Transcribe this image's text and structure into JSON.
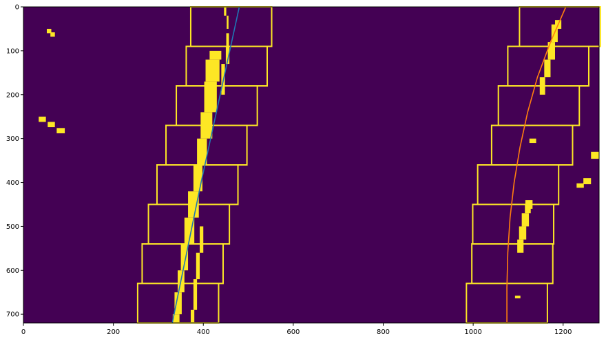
{
  "chart_data": {
    "type": "image",
    "title": "",
    "xlabel": "",
    "ylabel": "",
    "xlim": [
      0,
      1280
    ],
    "ylim": [
      720,
      0
    ],
    "x_ticks": [
      0,
      200,
      400,
      600,
      800,
      1000,
      1200
    ],
    "y_ticks": [
      0,
      100,
      200,
      300,
      400,
      500,
      600,
      700
    ],
    "colors": {
      "background": "#440154",
      "pixels": "#fde725",
      "windows": "#fde725",
      "left_fit": "#1f77b4",
      "right_fit": "#ff7f0e"
    },
    "left_windows": [
      {
        "x": [
          254,
          434
        ],
        "y": [
          630,
          720
        ]
      },
      {
        "x": [
          264,
          444
        ],
        "y": [
          540,
          630
        ]
      },
      {
        "x": [
          278,
          458
        ],
        "y": [
          450,
          540
        ]
      },
      {
        "x": [
          297,
          477
        ],
        "y": [
          360,
          450
        ]
      },
      {
        "x": [
          317,
          497
        ],
        "y": [
          270,
          360
        ]
      },
      {
        "x": [
          340,
          520
        ],
        "y": [
          180,
          270
        ]
      },
      {
        "x": [
          362,
          542
        ],
        "y": [
          90,
          180
        ]
      },
      {
        "x": [
          372,
          552
        ],
        "y": [
          0,
          90
        ]
      }
    ],
    "right_windows": [
      {
        "x": [
          985,
          1165
        ],
        "y": [
          630,
          720
        ]
      },
      {
        "x": [
          997,
          1177
        ],
        "y": [
          540,
          630
        ]
      },
      {
        "x": [
          999,
          1179
        ],
        "y": [
          450,
          540
        ]
      },
      {
        "x": [
          1010,
          1190
        ],
        "y": [
          360,
          450
        ]
      },
      {
        "x": [
          1041,
          1221
        ],
        "y": [
          270,
          360
        ]
      },
      {
        "x": [
          1056,
          1236
        ],
        "y": [
          180,
          270
        ]
      },
      {
        "x": [
          1077,
          1257
        ],
        "y": [
          90,
          180
        ]
      },
      {
        "x": [
          1103,
          1283
        ],
        "y": [
          0,
          90
        ]
      }
    ],
    "left_fit": {
      "x": [
        480,
        463,
        446,
        429,
        412,
        395,
        379,
        363,
        347,
        331
      ],
      "y": [
        0,
        80,
        160,
        240,
        320,
        400,
        480,
        560,
        640,
        720
      ]
    },
    "right_fit": {
      "x": [
        1206,
        1172,
        1143,
        1121,
        1104,
        1091,
        1082,
        1077,
        1075,
        1075
      ],
      "y": [
        0,
        80,
        160,
        240,
        320,
        400,
        480,
        560,
        640,
        720
      ]
    },
    "left_lane_pixels": [
      {
        "x": [
          332,
          347
        ],
        "y": [
          700,
          720
        ]
      },
      {
        "x": [
          336,
          352
        ],
        "y": [
          650,
          700
        ]
      },
      {
        "x": [
          343,
          358
        ],
        "y": [
          600,
          650
        ]
      },
      {
        "x": [
          350,
          366
        ],
        "y": [
          540,
          600
        ]
      },
      {
        "x": [
          358,
          380
        ],
        "y": [
          480,
          540
        ]
      },
      {
        "x": [
          366,
          390
        ],
        "y": [
          420,
          480
        ]
      },
      {
        "x": [
          378,
          398
        ],
        "y": [
          360,
          420
        ]
      },
      {
        "x": [
          386,
          408
        ],
        "y": [
          300,
          360
        ]
      },
      {
        "x": [
          394,
          420
        ],
        "y": [
          240,
          300
        ]
      },
      {
        "x": [
          402,
          430
        ],
        "y": [
          170,
          240
        ]
      },
      {
        "x": [
          405,
          436
        ],
        "y": [
          120,
          170
        ]
      },
      {
        "x": [
          414,
          440
        ],
        "y": [
          100,
          120
        ]
      },
      {
        "x": [
          440,
          448
        ],
        "y": [
          130,
          200
        ]
      },
      {
        "x": [
          450,
          458
        ],
        "y": [
          90,
          130
        ]
      },
      {
        "x": [
          451,
          457
        ],
        "y": [
          60,
          90
        ]
      },
      {
        "x": [
          452,
          456
        ],
        "y": [
          20,
          50
        ]
      },
      {
        "x": [
          446,
          451
        ],
        "y": [
          0,
          20
        ]
      }
    ],
    "left_lane_pixels_right_edge": [
      {
        "x": [
          372,
          380
        ],
        "y": [
          690,
          720
        ]
      },
      {
        "x": [
          378,
          386
        ],
        "y": [
          620,
          690
        ]
      },
      {
        "x": [
          384,
          392
        ],
        "y": [
          560,
          620
        ]
      },
      {
        "x": [
          392,
          400
        ],
        "y": [
          500,
          560
        ]
      }
    ],
    "right_lane_pixels": [
      {
        "x": [
          1148,
          1160
        ],
        "y": [
          160,
          200
        ]
      },
      {
        "x": [
          1158,
          1172
        ],
        "y": [
          120,
          160
        ]
      },
      {
        "x": [
          1166,
          1182
        ],
        "y": [
          80,
          120
        ]
      },
      {
        "x": [
          1174,
          1188
        ],
        "y": [
          40,
          80
        ]
      },
      {
        "x": [
          1182,
          1196
        ],
        "y": [
          30,
          50
        ]
      },
      {
        "x": [
          1115,
          1128
        ],
        "y": [
          450,
          470
        ]
      },
      {
        "x": [
          1108,
          1124
        ],
        "y": [
          470,
          500
        ]
      },
      {
        "x": [
          1102,
          1118
        ],
        "y": [
          500,
          530
        ]
      },
      {
        "x": [
          1098,
          1112
        ],
        "y": [
          530,
          560
        ]
      },
      {
        "x": [
          1116,
          1132
        ],
        "y": [
          440,
          460
        ]
      },
      {
        "x": [
          1125,
          1140
        ],
        "y": [
          300,
          310
        ]
      },
      {
        "x": [
          1093,
          1105
        ],
        "y": [
          658,
          664
        ]
      }
    ],
    "noise_blobs": [
      {
        "x": [
          52,
          62
        ],
        "y": [
          50,
          60
        ]
      },
      {
        "x": [
          60,
          70
        ],
        "y": [
          58,
          68
        ]
      },
      {
        "x": [
          34,
          50
        ],
        "y": [
          250,
          262
        ]
      },
      {
        "x": [
          54,
          70
        ],
        "y": [
          262,
          274
        ]
      },
      {
        "x": [
          74,
          92
        ],
        "y": [
          276,
          288
        ]
      },
      {
        "x": [
          1262,
          1280
        ],
        "y": [
          330,
          346
        ]
      },
      {
        "x": [
          1245,
          1262
        ],
        "y": [
          390,
          404
        ]
      },
      {
        "x": [
          1230,
          1246
        ],
        "y": [
          402,
          412
        ]
      }
    ]
  }
}
